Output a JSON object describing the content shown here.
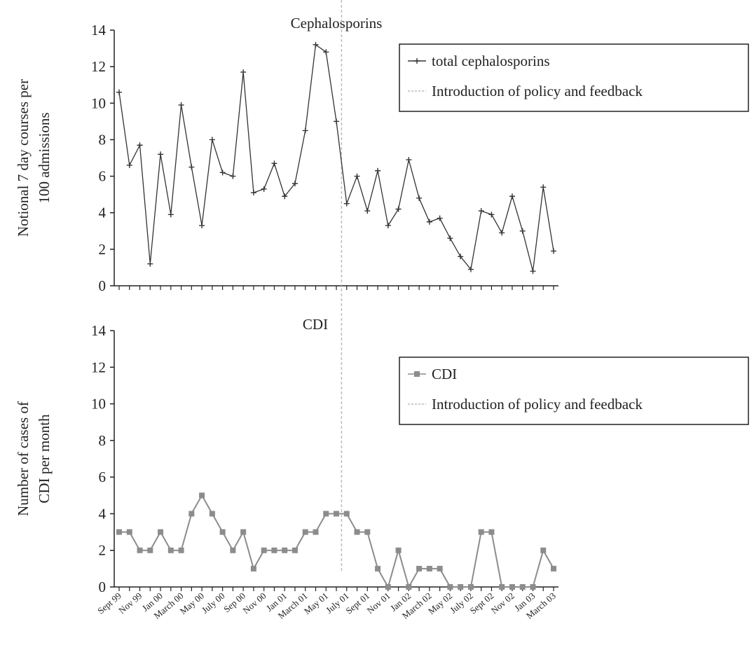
{
  "chart_data": [
    {
      "type": "line",
      "title": "Cephalosporins",
      "ylabel": [
        "Notional 7 day courses per",
        "100 admissions"
      ],
      "ylim": [
        0,
        14
      ],
      "yticks": [
        0,
        2,
        4,
        6,
        8,
        10,
        12,
        14
      ],
      "legend": "upper right",
      "series": [
        {
          "name": "total cephalosporins",
          "color": "#333333",
          "marker": "plus",
          "values": [
            10.6,
            6.6,
            7.7,
            1.2,
            7.2,
            3.9,
            9.9,
            6.5,
            3.3,
            8.0,
            6.2,
            6.0,
            11.7,
            5.1,
            5.3,
            6.7,
            4.9,
            5.6,
            8.5,
            13.2,
            12.8,
            9.0,
            4.5,
            6.0,
            4.1,
            6.3,
            3.3,
            4.2,
            6.9,
            4.8,
            3.5,
            3.7,
            2.6,
            1.6,
            0.9,
            4.1,
            3.9,
            2.9,
            4.9,
            3.0,
            0.8,
            5.4,
            1.9
          ]
        }
      ],
      "vline": {
        "name": "Introduction of policy and feedback",
        "x": 21.5,
        "color": "#bbbbbb"
      }
    },
    {
      "type": "line",
      "title": "CDI",
      "ylabel": [
        "Number of cases of",
        "CDI per month"
      ],
      "ylim": [
        0,
        14
      ],
      "yticks": [
        0,
        2,
        4,
        6,
        8,
        10,
        12,
        14
      ],
      "legend": "upper right",
      "categories": [
        "Sept 99",
        null,
        "Nov 99",
        null,
        "Jan 00",
        null,
        "March 00",
        null,
        "May 00",
        null,
        "July 00",
        null,
        "Sep 00",
        null,
        "Nov 00",
        null,
        "Jan 01",
        null,
        "March 01",
        null,
        "May 01",
        null,
        "July 01",
        null,
        "Sept 01",
        null,
        "Nov 01",
        null,
        "Jan 02",
        null,
        "March 02",
        null,
        "May 02",
        null,
        "July 02",
        null,
        "Sept 02",
        null,
        "Nov 02",
        null,
        "Jan 03",
        null,
        "March 03"
      ],
      "series": [
        {
          "name": "CDI",
          "color": "#8c8c8c",
          "marker": "square",
          "values": [
            3,
            3,
            2,
            2,
            3,
            2,
            2,
            4,
            5,
            4,
            3,
            2,
            3,
            1,
            2,
            2,
            2,
            2,
            3,
            3,
            4,
            4,
            4,
            3,
            3,
            1,
            0,
            2,
            0,
            1,
            1,
            1,
            0,
            0,
            0,
            3,
            3,
            0,
            0,
            0,
            0,
            2,
            1
          ]
        }
      ],
      "vline": {
        "name": "Introduction of policy and feedback",
        "x": 21.5,
        "color": "#bbbbbb"
      }
    }
  ]
}
